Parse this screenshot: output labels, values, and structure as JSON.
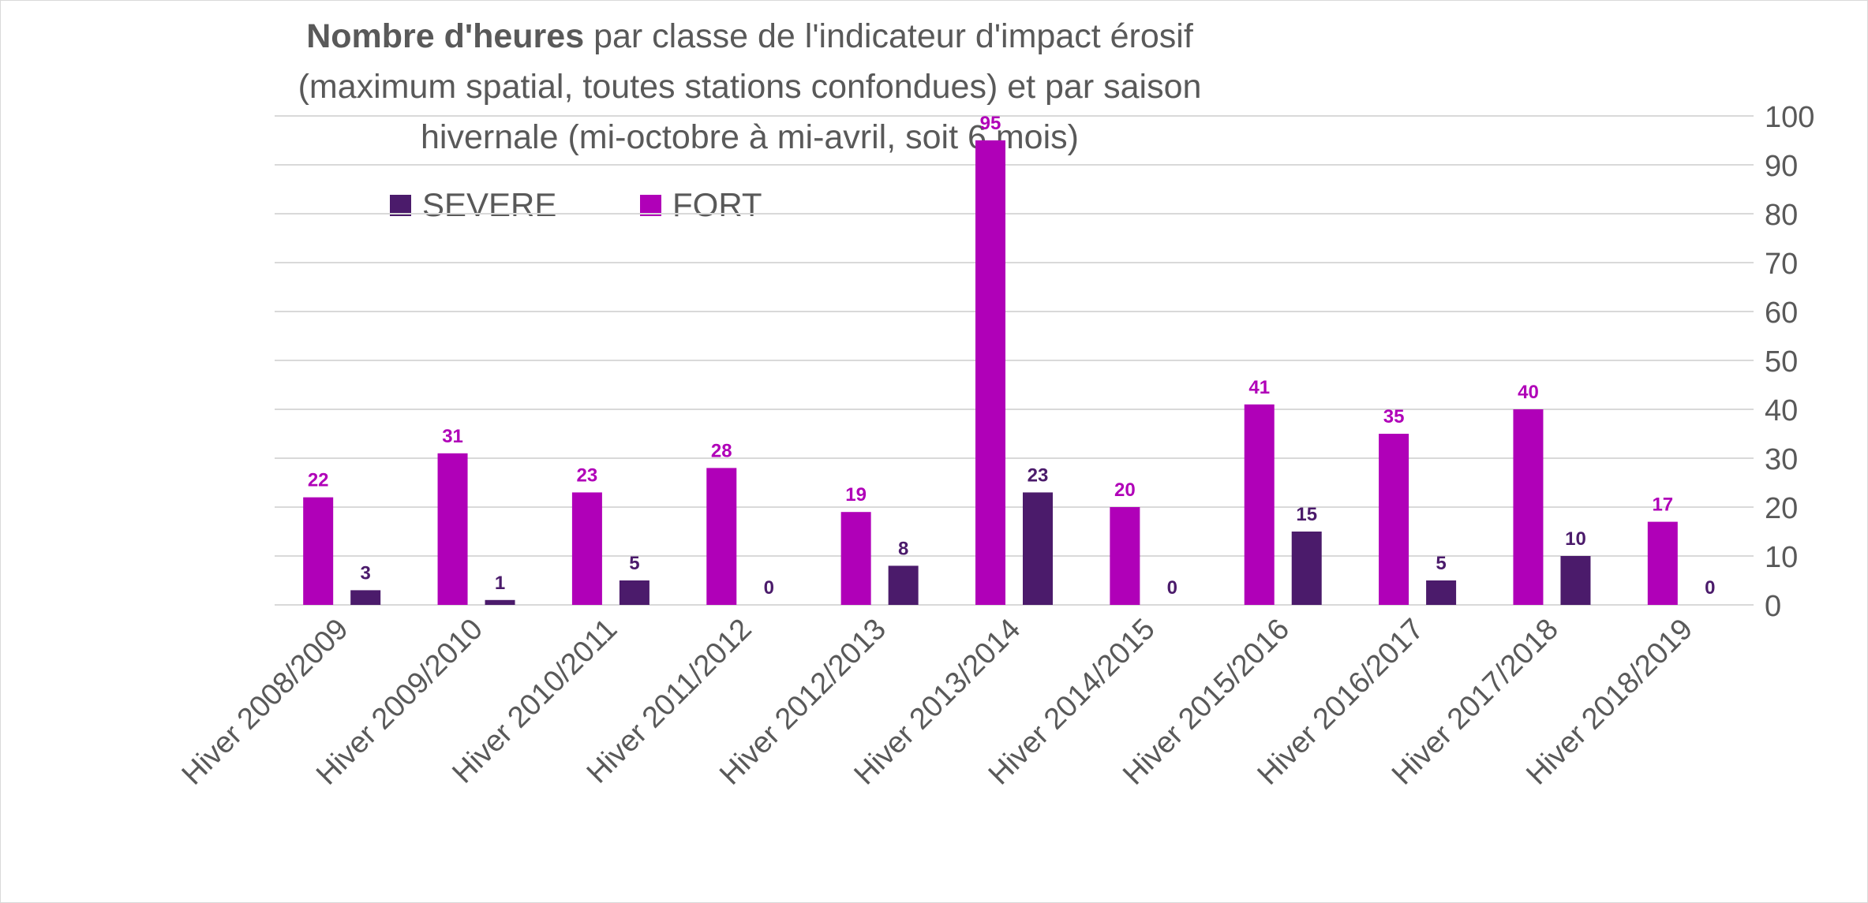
{
  "title": {
    "bold": "Nombre d'heures",
    "rest": " par classe de l'indicateur d'impact érosif (maximum spatial, toutes stations confondues) et par saison hivernale (mi-octobre à mi-avril, soit 6 mois)"
  },
  "legend": {
    "severe_label": "SEVERE",
    "fort_label": "FORT"
  },
  "colors": {
    "severe": "#4b1b6b",
    "fort": "#b000b8",
    "grid": "#d9d9d9",
    "axis_text": "#595959"
  },
  "chart_data": {
    "type": "bar",
    "title": "Nombre d'heures par classe de l'indicateur d'impact érosif (maximum spatial, toutes stations confondues) et par saison hivernale (mi-octobre à mi-avril, soit 6 mois)",
    "categories": [
      "Hiver 2008/2009",
      "Hiver 2009/2010",
      "Hiver 2010/2011",
      "Hiver 2011/2012",
      "Hiver 2012/2013",
      "Hiver 2013/2014",
      "Hiver 2014/2015",
      "Hiver 2015/2016",
      "Hiver 2016/2017",
      "Hiver 2017/2018",
      "Hiver 2018/2019"
    ],
    "series": [
      {
        "name": "FORT",
        "values": [
          22,
          31,
          23,
          28,
          19,
          95,
          20,
          41,
          35,
          40,
          17
        ]
      },
      {
        "name": "SEVERE",
        "values": [
          3,
          1,
          5,
          0,
          8,
          23,
          0,
          15,
          5,
          10,
          0
        ]
      }
    ],
    "ylim": [
      0,
      100
    ],
    "yticks": [
      0,
      10,
      20,
      30,
      40,
      50,
      60,
      70,
      80,
      90,
      100
    ],
    "y_axis_side": "right",
    "grid": true,
    "legend_position": "top-left",
    "data_labels": true,
    "xlabel": "",
    "ylabel": ""
  }
}
